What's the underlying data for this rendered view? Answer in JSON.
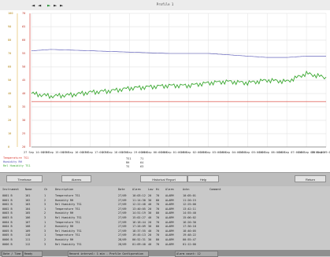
{
  "window": {
    "title": "Profile 1"
  },
  "nav": {
    "first": "◄",
    "prev": "◄",
    "play": "►",
    "next": "►",
    "last": "►"
  },
  "legend": [
    {
      "label": "Temperature TS1",
      "color": "#d9352b"
    },
    {
      "label": "Humidity RH",
      "color": "#4a4ab0"
    },
    {
      "label": "Rel Humidity TS1",
      "color": "#3aa830"
    }
  ],
  "axes": {
    "left_ticks": [
      "100",
      "90",
      "80",
      "70",
      "60",
      "50",
      "40",
      "30",
      "20",
      "10",
      "0"
    ],
    "right_ticks": [
      "70",
      "65",
      "60",
      "55",
      "50",
      "45",
      "40",
      "35",
      "30",
      "25",
      "20"
    ],
    "x_ticks": [
      "27 Sep 14:00:00",
      "27 Sep 15:00:00",
      "27 Sep 16:00:00",
      "27 Sep 17:00:00",
      "27 Sep 18:00:00",
      "27 Sep 19:00:00",
      "28 Sep 00:00:00",
      "28 Sep 01:00:00",
      "28 Sep 02:00:00",
      "28 Sep 03:00:00",
      "28 Sep 04:00:00",
      "28 Sep 05:00:00",
      "28 Sep 06:00:00",
      "28 Sep 07:00:00",
      "28 Sep 08:00:00",
      "28 Sep 09:00:00"
    ]
  },
  "cursor": {
    "rows": [
      {
        "k": "TS1",
        "v": "71"
      },
      {
        "k": "RH",
        "v": "64"
      },
      {
        "k": "TS",
        "v": "63"
      }
    ]
  },
  "chart_data": {
    "type": "line",
    "x_start": "27 Sep 14:00:00",
    "x_end": "28 Sep 09:00:00",
    "series": [
      {
        "name": "Humidity RH",
        "color": "#4a4ab0",
        "values": [
          72,
          73,
          72.5,
          72,
          71.5,
          71,
          70.5,
          70,
          70,
          70,
          69,
          68,
          67,
          67,
          68,
          68
        ]
      },
      {
        "name": "Rel Humidity TS1",
        "color": "#3aa830",
        "values": [
          40,
          38,
          39,
          41,
          42,
          44,
          45,
          46,
          46,
          48,
          49,
          48,
          50,
          49,
          55,
          52
        ]
      },
      {
        "name": "Temperature TS1",
        "color": "#d9352b",
        "values": [
          34,
          34,
          34,
          34,
          34,
          34,
          34,
          34,
          34,
          34,
          34,
          34,
          34,
          34,
          34,
          34
        ]
      }
    ],
    "ylim": [
      0,
      100
    ],
    "grid": true
  },
  "buttons": {
    "timebase": "Timebase",
    "alarms": "Alarms",
    "report": "Historical Report",
    "help": "Help",
    "return": "Return"
  },
  "table": {
    "headers": [
      "Instrument",
      "Name",
      "Ch",
      "Description",
      "Date",
      "Alarm",
      "Low",
      "Hi",
      "Alarm",
      "Ackn",
      "Comment"
    ],
    "rows": [
      [
        "0001 B",
        "101",
        "1",
        "Temperature TS1",
        "27/09",
        "10:03:12",
        "20",
        "70",
        "ALARM",
        "10:05:01",
        ""
      ],
      [
        "0001 B",
        "102",
        "2",
        "Humidity RH",
        "27/09",
        "11:14:30",
        "30",
        "80",
        "ALARM",
        "11:20:15",
        ""
      ],
      [
        "0002 B",
        "103",
        "3",
        "Rel Humidity TS1",
        "27/09",
        "12:22:48",
        "40",
        "70",
        "ALARM",
        "12:25:00",
        ""
      ],
      [
        "0002 B",
        "104",
        "1",
        "Temperature TS1",
        "27/09",
        "13:40:05",
        "20",
        "70",
        "ALARM",
        "13:42:11",
        ""
      ],
      [
        "0003 B",
        "105",
        "2",
        "Humidity RH",
        "27/09",
        "14:51:19",
        "30",
        "80",
        "ALARM",
        "14:55:40",
        ""
      ],
      [
        "0003 B",
        "106",
        "3",
        "Rel Humidity TS1",
        "27/09",
        "15:02:27",
        "40",
        "70",
        "ALARM",
        "15:06:02",
        ""
      ],
      [
        "0004 B",
        "107",
        "1",
        "Temperature TS1",
        "27/09",
        "16:18:44",
        "20",
        "70",
        "ALARM",
        "16:20:30",
        ""
      ],
      [
        "0004 B",
        "108",
        "2",
        "Humidity RH",
        "27/09",
        "17:26:09",
        "30",
        "80",
        "ALARM",
        "17:30:18",
        ""
      ],
      [
        "0005 B",
        "109",
        "3",
        "Rel Humidity TS1",
        "27/09",
        "18:37:55",
        "40",
        "70",
        "ALARM",
        "18:40:05",
        ""
      ],
      [
        "0005 B",
        "110",
        "1",
        "Temperature TS1",
        "27/09",
        "19:45:13",
        "20",
        "70",
        "ALARM",
        "19:48:22",
        ""
      ],
      [
        "0006 B",
        "111",
        "2",
        "Humidity RH",
        "28/09",
        "00:52:31",
        "30",
        "80",
        "ALARM",
        "00:55:47",
        ""
      ],
      [
        "0006 B",
        "112",
        "3",
        "Rel Humidity TS1",
        "28/09",
        "01:09:40",
        "40",
        "70",
        "ALARM",
        "01:12:00",
        ""
      ]
    ]
  },
  "status": {
    "c1": "Date / Time",
    "c2": "Ready",
    "c3": "Record interval: 1 min - Profile Configuration",
    "c4": "Alarm count: 12"
  }
}
